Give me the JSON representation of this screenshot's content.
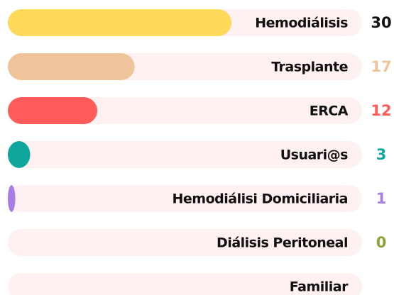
{
  "chart_data": {
    "type": "bar",
    "orientation": "horizontal",
    "categories": [
      "Hemodiálisis",
      "Trasplante",
      "ERCA",
      "Usuari@s",
      "Hemodiálisi Domiciliaria",
      "Diálisis Peritoneal",
      "Familiar"
    ],
    "values": [
      30,
      17,
      12,
      3,
      1,
      0,
      null
    ],
    "colors": [
      "#ffd95a",
      "#efc49b",
      "#ff5b5b",
      "#0fa69d",
      "#a77de6",
      "#8aa337",
      "#8aa337"
    ],
    "value_label_colors": [
      "#111111",
      "#efc49b",
      "#ff5b5b",
      "#0fa69d",
      "#a77de6",
      "#8aa337",
      "#8aa337"
    ],
    "track_color": "#fff0f1",
    "xlim": [
      0,
      47.5
    ]
  }
}
